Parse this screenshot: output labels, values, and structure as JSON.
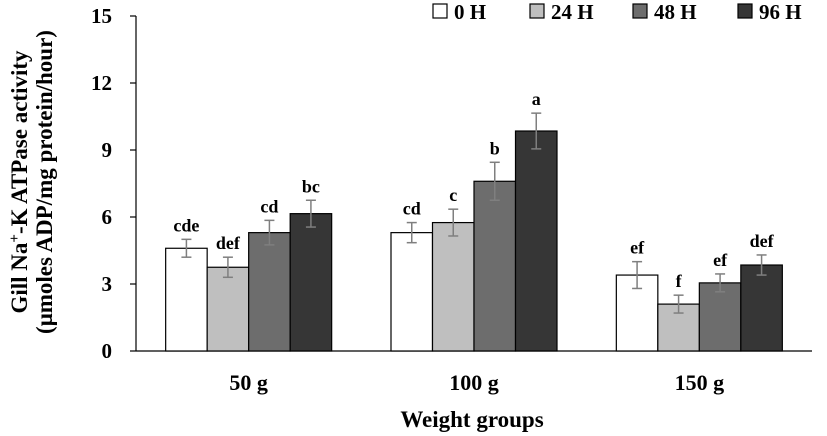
{
  "chart_data": {
    "type": "bar",
    "title": "",
    "xlabel": "Weight groups",
    "ylabel": {
      "line1_prefix": "Gill Na",
      "line1_sup": "+",
      "line1_suffix": "-K  ATPase activity",
      "line2": "(μmoles ADP/mg protein/hour)"
    },
    "ylim": [
      0,
      15
    ],
    "yticks": [
      "0",
      "3",
      "6",
      "9",
      "12",
      "15"
    ],
    "categories": [
      "50 g",
      "100 g",
      "150 g"
    ],
    "legend_position": "top-right",
    "grid": false,
    "series": [
      {
        "name": "0 H",
        "color": "#ffffff",
        "values": [
          4.6,
          5.3,
          3.4
        ],
        "errors": [
          0.4,
          0.45,
          0.6
        ],
        "labels": [
          "cde",
          "cd",
          "ef"
        ]
      },
      {
        "name": "24 H",
        "color": "#bfbfbf",
        "values": [
          3.75,
          5.75,
          2.1
        ],
        "errors": [
          0.45,
          0.6,
          0.4
        ],
        "labels": [
          "def",
          "c",
          "f"
        ]
      },
      {
        "name": "48 H",
        "color": "#6d6d6d",
        "values": [
          5.3,
          7.6,
          3.05
        ],
        "errors": [
          0.55,
          0.85,
          0.4
        ],
        "labels": [
          "cd",
          "b",
          "ef"
        ]
      },
      {
        "name": "96 H",
        "color": "#363636",
        "values": [
          6.15,
          9.85,
          3.85
        ],
        "errors": [
          0.6,
          0.8,
          0.45
        ],
        "labels": [
          "bc",
          "a",
          "def"
        ]
      }
    ]
  }
}
